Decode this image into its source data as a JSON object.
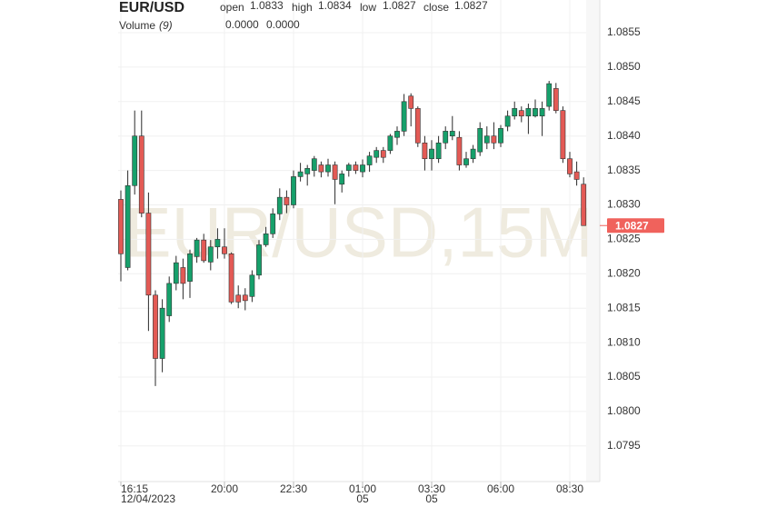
{
  "chart_data": {
    "type": "candlestick",
    "symbol": "EUR/USD",
    "fields": [
      {
        "label": "open",
        "value": "1.0833"
      },
      {
        "label": "high",
        "value": "1.0834"
      },
      {
        "label": "low",
        "value": "1.0827"
      },
      {
        "label": "close",
        "value": "1.0827"
      }
    ],
    "field_value_color": "#e35a55",
    "volume_label": "Volume",
    "volume_period": "(9)",
    "volume_values": [
      {
        "text": "0.0000",
        "color": "#e35a55"
      },
      {
        "text": "0.0000",
        "color": "#3d8af7"
      }
    ],
    "watermark": "EUR/USD,15M",
    "last_price": 1.0827,
    "last_price_color": "#f0625c",
    "up_color": "#16a06b",
    "down_color": "#e35a55",
    "grid": true,
    "categories": [
      "16:15",
      null,
      null,
      null,
      null,
      null,
      null,
      null,
      null,
      null,
      null,
      null,
      null,
      null,
      null,
      "20:00",
      null,
      null,
      null,
      null,
      null,
      null,
      null,
      null,
      null,
      "22:30",
      null,
      null,
      null,
      null,
      null,
      null,
      null,
      null,
      null,
      "01:00",
      null,
      null,
      null,
      null,
      null,
      null,
      null,
      null,
      null,
      "03:30",
      null,
      null,
      null,
      null,
      null,
      null,
      null,
      null,
      null,
      "06:00",
      null,
      null,
      null,
      null,
      null,
      null,
      null,
      null,
      null,
      "08:30",
      null,
      null
    ],
    "category_sublabels": [
      "12/04/2023",
      null,
      null,
      null,
      null,
      null,
      null,
      null,
      null,
      null,
      null,
      null,
      null,
      null,
      null,
      null,
      null,
      null,
      null,
      null,
      null,
      null,
      null,
      null,
      null,
      null,
      null,
      null,
      null,
      null,
      null,
      null,
      null,
      null,
      null,
      "05",
      null,
      null,
      null,
      null,
      null,
      null,
      null,
      null,
      null,
      "05",
      null,
      null,
      null,
      null,
      null,
      null,
      null,
      null,
      null,
      null,
      null,
      null,
      null,
      null,
      null,
      null,
      null,
      null,
      null,
      null,
      null,
      null
    ],
    "open": [
      1.08308,
      1.08209,
      1.08328,
      1.084,
      1.08288,
      1.08169,
      1.08077,
      1.08139,
      1.08186,
      1.08209,
      1.08189,
      1.08225,
      1.08249,
      1.08217,
      1.08239,
      1.08239,
      1.08229,
      1.08169,
      1.08169,
      1.08167,
      1.08198,
      1.08242,
      1.08258,
      1.08287,
      1.08311,
      1.083,
      1.08341,
      1.08345,
      1.0835,
      1.08358,
      1.08348,
      1.08358,
      1.0833,
      1.0835,
      1.08358,
      1.08348,
      1.08358,
      1.08369,
      1.08379,
      1.08379,
      1.08398,
      1.08407,
      1.08458,
      1.0844,
      1.0839,
      1.08367,
      1.08367,
      1.0839,
      1.084,
      1.08398,
      1.08358,
      1.08367,
      1.08377,
      1.0839,
      1.084,
      1.0839,
      1.08414,
      1.08429,
      1.08437,
      1.08429,
      1.08429,
      1.08429,
      1.08443,
      1.08469,
      1.08437,
      1.08367,
      1.08348,
      1.0833
    ],
    "high": [
      1.08321,
      1.0835,
      1.08437,
      1.08437,
      1.08318,
      1.08176,
      1.08163,
      1.08196,
      1.08226,
      1.08222,
      1.08235,
      1.08252,
      1.08258,
      1.08249,
      1.08266,
      1.08266,
      1.08231,
      1.08183,
      1.08179,
      1.08205,
      1.08249,
      1.08268,
      1.08295,
      1.08324,
      1.08321,
      1.0835,
      1.08361,
      1.08358,
      1.08371,
      1.08363,
      1.08367,
      1.08363,
      1.0835,
      1.08361,
      1.08363,
      1.08366,
      1.08377,
      1.08384,
      1.08384,
      1.08403,
      1.08414,
      1.08461,
      1.08462,
      1.08443,
      1.084,
      1.08394,
      1.084,
      1.08414,
      1.08429,
      1.08407,
      1.08377,
      1.08387,
      1.0842,
      1.08414,
      1.0842,
      1.08416,
      1.08437,
      1.0845,
      1.08443,
      1.08447,
      1.08453,
      1.0845,
      1.0848,
      1.08477,
      1.08443,
      1.08377,
      1.08363,
      1.0834
    ],
    "low": [
      1.08189,
      1.08205,
      1.08315,
      1.08282,
      1.08117,
      1.08037,
      1.08057,
      1.0813,
      1.08176,
      1.08163,
      1.08165,
      1.08216,
      1.08216,
      1.08205,
      1.08222,
      1.08222,
      1.08156,
      1.0815,
      1.08147,
      1.08159,
      1.08192,
      1.08239,
      1.08252,
      1.08278,
      1.08288,
      1.08295,
      1.08334,
      1.08328,
      1.08341,
      1.0834,
      1.08341,
      1.08301,
      1.08318,
      1.08341,
      1.08345,
      1.0834,
      1.08348,
      1.08361,
      1.08361,
      1.08374,
      1.08387,
      1.084,
      1.08414,
      1.08384,
      1.0835,
      1.0835,
      1.08361,
      1.08381,
      1.08394,
      1.0835,
      1.08354,
      1.08361,
      1.08371,
      1.08381,
      1.08381,
      1.08384,
      1.08407,
      1.08424,
      1.0842,
      1.08403,
      1.08427,
      1.084,
      1.08437,
      1.08433,
      1.08361,
      1.0834,
      1.08328,
      1.0827
    ],
    "close": [
      1.08229,
      1.08328,
      1.084,
      1.08288,
      1.08169,
      1.08077,
      1.0815,
      1.08186,
      1.08216,
      1.08186,
      1.08229,
      1.08249,
      1.08219,
      1.08239,
      1.0825,
      1.08229,
      1.08159,
      1.08159,
      1.08161,
      1.08198,
      1.08242,
      1.08258,
      1.08287,
      1.08311,
      1.083,
      1.08341,
      1.08348,
      1.08353,
      1.08367,
      1.08348,
      1.08358,
      1.08337,
      1.08345,
      1.08358,
      1.0835,
      1.08358,
      1.08371,
      1.08379,
      1.08369,
      1.084,
      1.08407,
      1.0845,
      1.0844,
      1.0839,
      1.08367,
      1.08381,
      1.0839,
      1.08407,
      1.08407,
      1.08358,
      1.08367,
      1.08381,
      1.08411,
      1.084,
      1.0839,
      1.08411,
      1.08429,
      1.0844,
      1.08429,
      1.0844,
      1.0844,
      1.0844,
      1.08476,
      1.08437,
      1.08367,
      1.08345,
      1.08337,
      1.0827
    ],
    "ylim": [
      1.079,
      1.086
    ],
    "yticks": [
      {
        "value": 1.0795,
        "label": "1.0795"
      },
      {
        "value": 1.08,
        "label": "1.0800"
      },
      {
        "value": 1.0805,
        "label": "1.0805"
      },
      {
        "value": 1.081,
        "label": "1.0810"
      },
      {
        "value": 1.0815,
        "label": "1.0815"
      },
      {
        "value": 1.082,
        "label": "1.0820"
      },
      {
        "value": 1.0825,
        "label": "1.0825"
      },
      {
        "value": 1.083,
        "label": "1.0830"
      },
      {
        "value": 1.0835,
        "label": "1.0835"
      },
      {
        "value": 1.084,
        "label": "1.0840"
      },
      {
        "value": 1.0845,
        "label": "1.0845"
      },
      {
        "value": 1.085,
        "label": "1.0850"
      },
      {
        "value": 1.0855,
        "label": "1.0855"
      }
    ]
  }
}
